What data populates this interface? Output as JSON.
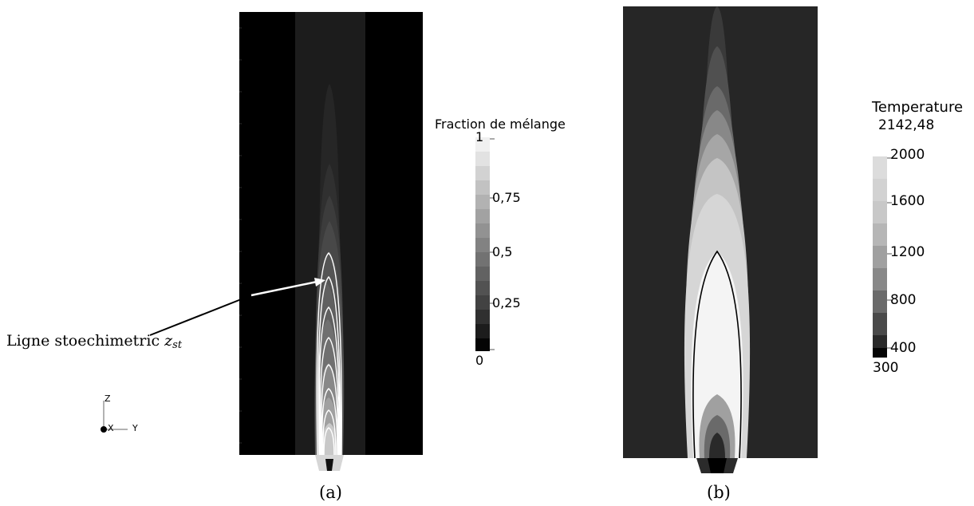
{
  "panel_a": {
    "caption": "(a)",
    "colorbar": {
      "title": "Fraction de mélange",
      "ticks": [
        "1",
        "0,75",
        "0,5",
        "0,25",
        "0"
      ]
    },
    "annotation": {
      "text": "Ligne stoechimetric ",
      "symbol": "z",
      "subscript": "st"
    },
    "axes": {
      "z": "Z",
      "x": "X",
      "y": "Y"
    }
  },
  "panel_b": {
    "caption": "(b)",
    "colorbar": {
      "title": "Temperature",
      "max_label": "2142,48",
      "ticks": [
        "2000",
        "1600",
        "1200",
        "800",
        "400",
        "300"
      ]
    }
  },
  "colors": {
    "background_a": "#000000",
    "background_b": "#262626",
    "stoich_line_a": "#ffffff",
    "stoich_line_b": "#000000"
  }
}
